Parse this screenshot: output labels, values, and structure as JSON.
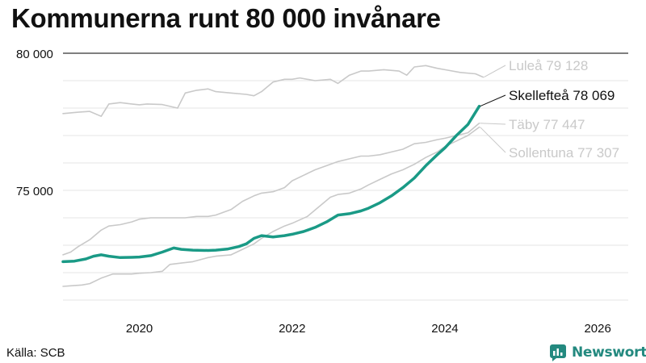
{
  "header": {
    "title": "Kommunerna runt 80 000 invånare"
  },
  "footer": {
    "source": "Källa: SCB",
    "brand": "Newsworthy"
  },
  "colors": {
    "highlight": "#1a9a86",
    "muted": "#c9c9c9",
    "axis": "#555555",
    "grid": "#e6e6e6",
    "brand": "#23897f"
  },
  "chart_data": {
    "type": "line",
    "title": "Kommunerna runt 80 000 invånare",
    "xlim": [
      2019.0,
      2026.4
    ],
    "ylim": [
      71000,
      80000
    ],
    "y_ticks": [
      {
        "value": 75000,
        "label": "75 000"
      },
      {
        "value": 80000,
        "label": "80 000"
      }
    ],
    "x_ticks": [
      {
        "value": 2020,
        "label": "2020"
      },
      {
        "value": 2022,
        "label": "2022"
      },
      {
        "value": 2024,
        "label": "2024"
      },
      {
        "value": 2026,
        "label": "2026"
      }
    ],
    "grid": true,
    "series": [
      {
        "name": "Luleå",
        "label": "Luleå 79 128",
        "highlight": false,
        "x": [
          2019.0,
          2019.2,
          2019.35,
          2019.5,
          2019.6,
          2019.75,
          2019.9,
          2020.0,
          2020.1,
          2020.3,
          2020.5,
          2020.6,
          2020.75,
          2020.9,
          2021.0,
          2021.2,
          2021.4,
          2021.5,
          2021.6,
          2021.75,
          2021.9,
          2022.0,
          2022.1,
          2022.3,
          2022.5,
          2022.6,
          2022.75,
          2022.9,
          2023.0,
          2023.2,
          2023.4,
          2023.5,
          2023.6,
          2023.75,
          2023.9,
          2024.0,
          2024.2,
          2024.4,
          2024.5
        ],
        "y": [
          77800,
          77850,
          77880,
          77700,
          78150,
          78200,
          78150,
          78120,
          78150,
          78130,
          78000,
          78550,
          78650,
          78700,
          78600,
          78550,
          78500,
          78450,
          78600,
          78950,
          79050,
          79050,
          79100,
          79000,
          79050,
          78900,
          79200,
          79350,
          79350,
          79400,
          79350,
          79200,
          79500,
          79550,
          79450,
          79400,
          79300,
          79250,
          79128
        ]
      },
      {
        "name": "Skellefteå",
        "label": "Skellefteå 78 069",
        "highlight": true,
        "x": [
          2019.0,
          2019.15,
          2019.3,
          2019.4,
          2019.5,
          2019.6,
          2019.75,
          2019.9,
          2020.0,
          2020.15,
          2020.3,
          2020.45,
          2020.55,
          2020.7,
          2020.9,
          2021.0,
          2021.15,
          2021.3,
          2021.4,
          2021.5,
          2021.6,
          2021.75,
          2021.9,
          2022.0,
          2022.15,
          2022.3,
          2022.45,
          2022.6,
          2022.75,
          2022.9,
          2023.0,
          2023.15,
          2023.3,
          2023.45,
          2023.6,
          2023.75,
          2023.9,
          2024.0,
          2024.15,
          2024.3,
          2024.45
        ],
        "y": [
          72400,
          72420,
          72500,
          72600,
          72650,
          72600,
          72550,
          72560,
          72570,
          72620,
          72750,
          72900,
          72850,
          72820,
          72810,
          72820,
          72860,
          72950,
          73050,
          73250,
          73350,
          73300,
          73350,
          73400,
          73500,
          73650,
          73850,
          74100,
          74150,
          74250,
          74350,
          74550,
          74800,
          75100,
          75450,
          75900,
          76300,
          76550,
          77000,
          77400,
          78069
        ]
      },
      {
        "name": "Täby",
        "label": "Täby 77 447",
        "highlight": false,
        "x": [
          2019.0,
          2019.1,
          2019.2,
          2019.35,
          2019.5,
          2019.6,
          2019.75,
          2019.9,
          2020.0,
          2020.15,
          2020.3,
          2020.5,
          2020.6,
          2020.75,
          2020.9,
          2021.0,
          2021.2,
          2021.35,
          2021.5,
          2021.6,
          2021.75,
          2021.9,
          2022.0,
          2022.15,
          2022.3,
          2022.45,
          2022.6,
          2022.75,
          2022.9,
          2023.0,
          2023.15,
          2023.3,
          2023.45,
          2023.6,
          2023.75,
          2023.9,
          2024.0,
          2024.15,
          2024.3,
          2024.45
        ],
        "y": [
          72650,
          72750,
          72950,
          73200,
          73550,
          73700,
          73750,
          73850,
          73950,
          74000,
          74000,
          74000,
          74000,
          74050,
          74050,
          74100,
          74300,
          74600,
          74800,
          74900,
          74950,
          75100,
          75350,
          75550,
          75750,
          75900,
          76050,
          76150,
          76250,
          76250,
          76300,
          76400,
          76500,
          76700,
          76750,
          76850,
          76900,
          77000,
          77100,
          77447
        ]
      },
      {
        "name": "Sollentuna",
        "label": "Sollentuna 77 307",
        "highlight": false,
        "x": [
          2019.0,
          2019.1,
          2019.25,
          2019.35,
          2019.5,
          2019.65,
          2019.75,
          2019.9,
          2020.0,
          2020.15,
          2020.3,
          2020.4,
          2020.55,
          2020.7,
          2020.9,
          2021.0,
          2021.2,
          2021.35,
          2021.5,
          2021.6,
          2021.75,
          2021.9,
          2022.0,
          2022.2,
          2022.35,
          2022.5,
          2022.6,
          2022.75,
          2022.9,
          2023.0,
          2023.15,
          2023.3,
          2023.45,
          2023.6,
          2023.75,
          2023.9,
          2024.0,
          2024.15,
          2024.3,
          2024.45
        ],
        "y": [
          71500,
          71520,
          71550,
          71600,
          71800,
          71950,
          71950,
          71950,
          71980,
          72000,
          72050,
          72300,
          72350,
          72400,
          72550,
          72600,
          72650,
          72850,
          73050,
          73250,
          73500,
          73700,
          73800,
          74050,
          74400,
          74750,
          74850,
          74900,
          75050,
          75200,
          75400,
          75600,
          75750,
          75950,
          76200,
          76400,
          76600,
          76800,
          77000,
          77307
        ]
      }
    ]
  }
}
